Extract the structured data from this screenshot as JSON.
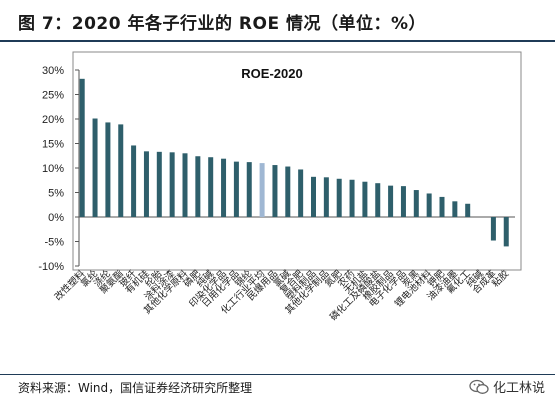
{
  "header": {
    "title": "图 7：2020 年各子行业的 ROE 情况（单位：%）"
  },
  "footer": {
    "source": "资料来源：Wind，国信证券经济研究所整理",
    "watermark": "化工林说",
    "watermark_icon": "wechat-icon"
  },
  "colors": {
    "bar": "#2e5f6b",
    "highlight": "#9fb7d3",
    "title_rule": "#1f3b57"
  },
  "chart_data": {
    "type": "bar",
    "title": "ROE-2020",
    "xlabel": "",
    "ylabel": "",
    "ylim": [
      -10,
      30
    ],
    "yticks": [
      "30%",
      "25%",
      "20%",
      "15%",
      "10%",
      "5%",
      "0%",
      "-5%",
      "-10%"
    ],
    "ytick_values": [
      30,
      25,
      20,
      15,
      10,
      5,
      0,
      -5,
      -10
    ],
    "grid": false,
    "highlight_category": "化工行业平均",
    "categories": [
      "改性塑料",
      "氯纶",
      "涤纶",
      "聚氨酯",
      "玻纤",
      "有机硅",
      "纶胎",
      "涂料涂漆",
      "其他化学原料",
      "磷肥",
      "纯碱",
      "印染化学品",
      "日用化学品",
      "锦纶",
      "化工行业平均",
      "民爆用品",
      "氯碱",
      "复合肥",
      "塑料制品",
      "其他化学制品",
      "氮肥",
      "农药",
      "无机盐",
      "磷化工及磷酸盐",
      "橡胶制品",
      "电子化学品",
      "炭黑",
      "锂电池材料",
      "钾肥",
      "油漆油墨",
      "氟化工",
      "纯碱",
      "合成革",
      "粘胶"
    ],
    "values": [
      28.2,
      20.1,
      19.3,
      18.9,
      14.6,
      13.4,
      13.3,
      13.2,
      13.0,
      12.4,
      12.2,
      11.9,
      11.3,
      11.2,
      11.0,
      10.6,
      10.3,
      9.7,
      8.2,
      8.1,
      7.8,
      7.6,
      7.2,
      6.9,
      6.4,
      6.3,
      5.5,
      4.8,
      4.1,
      3.2,
      2.7,
      0.0,
      -4.8,
      -6.0
    ]
  }
}
